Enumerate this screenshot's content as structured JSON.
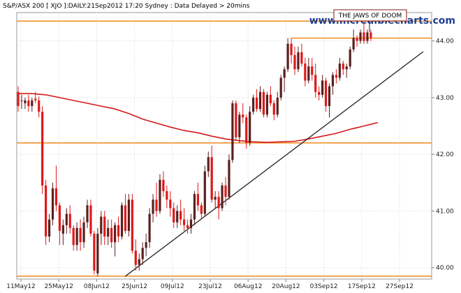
{
  "header_text": "S&P/ASX 200 [ XJO ]:DAILY:21Sep2012 17:20 Sydney : Data Delayed > 20mins",
  "watermark": "www.incrediblecharts.com",
  "annotation": "THE JAWS OF DOOM",
  "colors": {
    "up": "#5a1f1f",
    "down": "#e01818",
    "ma": "#d41a1a",
    "hline": "#f08a1c",
    "trend": "#202020",
    "grid": "#d6d6d6",
    "axis": "#808080",
    "watermark": "#1f3f8f",
    "annotation_border": "#8b1a1a"
  },
  "chart_data": {
    "type": "candlestick",
    "x_labels": [
      "11May12",
      "25May12",
      "08Jun12",
      "25Jun12",
      "09Jul12",
      "23Jul12",
      "06Aug12",
      "20Aug12",
      "03Sep12",
      "17Sep12",
      "27Sep12"
    ],
    "y_ticks": [
      "44.00",
      "43.00",
      "42.00",
      "41.00",
      "40.00"
    ],
    "ylim": [
      39.8,
      44.5
    ],
    "hlines": [
      44.35,
      44.05,
      42.2,
      39.85
    ],
    "ma_line": [
      43.07,
      43.07,
      43.05,
      43.0,
      42.95,
      42.9,
      42.85,
      42.8,
      42.72,
      42.62,
      42.55,
      42.48,
      42.42,
      42.38,
      42.32,
      42.27,
      42.24,
      42.22,
      42.21,
      42.22,
      42.23,
      42.27,
      42.32,
      42.37,
      42.44,
      42.5,
      42.56
    ],
    "ma_start_index": 0,
    "ma_end_index": 104,
    "trendline": {
      "from_index": 31,
      "from_value": 39.85,
      "to_index": 117,
      "to_value": 44.0
    },
    "candles": [
      [
        43.1,
        43.2,
        42.75,
        42.85
      ],
      [
        42.95,
        43.05,
        42.8,
        42.95
      ],
      [
        42.9,
        43.0,
        42.8,
        42.95
      ],
      [
        42.95,
        43.05,
        42.75,
        42.85
      ],
      [
        42.85,
        43.0,
        42.75,
        42.95
      ],
      [
        42.98,
        43.1,
        42.9,
        42.95
      ],
      [
        42.95,
        43.02,
        42.65,
        42.75
      ],
      [
        42.75,
        42.85,
        41.3,
        41.45
      ],
      [
        41.45,
        41.55,
        40.4,
        40.55
      ],
      [
        40.55,
        40.95,
        40.45,
        40.85
      ],
      [
        40.85,
        41.5,
        40.75,
        41.4
      ],
      [
        41.4,
        41.8,
        41.0,
        41.1
      ],
      [
        41.1,
        41.15,
        40.4,
        40.65
      ],
      [
        40.6,
        40.85,
        40.4,
        40.75
      ],
      [
        40.75,
        41.05,
        40.6,
        40.95
      ],
      [
        40.95,
        41.1,
        40.6,
        40.7
      ],
      [
        40.7,
        40.75,
        40.3,
        40.4
      ],
      [
        40.4,
        40.8,
        40.3,
        40.7
      ],
      [
        40.7,
        40.85,
        40.3,
        40.45
      ],
      [
        40.45,
        40.9,
        40.35,
        40.8
      ],
      [
        40.8,
        41.2,
        40.7,
        41.1
      ],
      [
        41.1,
        41.2,
        40.55,
        40.6
      ],
      [
        40.6,
        40.65,
        39.88,
        39.95
      ],
      [
        39.9,
        40.7,
        39.85,
        40.6
      ],
      [
        40.6,
        41.0,
        40.4,
        40.9
      ],
      [
        40.9,
        41.0,
        40.4,
        40.55
      ],
      [
        40.55,
        40.85,
        40.4,
        40.7
      ],
      [
        40.7,
        40.85,
        40.35,
        40.45
      ],
      [
        40.45,
        40.8,
        40.2,
        40.75
      ],
      [
        40.75,
        40.9,
        40.45,
        40.55
      ],
      [
        40.55,
        41.15,
        40.5,
        41.1
      ],
      [
        41.1,
        41.3,
        40.6,
        40.65
      ],
      [
        40.65,
        41.3,
        40.55,
        41.2
      ],
      [
        41.2,
        41.3,
        40.25,
        40.3
      ],
      [
        40.3,
        40.5,
        39.95,
        40.05
      ],
      [
        40.05,
        40.25,
        39.95,
        40.15
      ],
      [
        40.15,
        40.45,
        40.05,
        40.35
      ],
      [
        40.35,
        40.6,
        40.2,
        40.45
      ],
      [
        40.45,
        41.05,
        40.35,
        40.95
      ],
      [
        40.95,
        41.3,
        40.8,
        41.2
      ],
      [
        41.2,
        41.5,
        40.9,
        41.0
      ],
      [
        41.0,
        41.65,
        40.95,
        41.55
      ],
      [
        41.55,
        41.7,
        41.25,
        41.35
      ],
      [
        41.35,
        41.45,
        41.05,
        41.2
      ],
      [
        41.2,
        41.35,
        40.9,
        41.05
      ],
      [
        41.05,
        41.15,
        40.7,
        40.8
      ],
      [
        40.8,
        41.1,
        40.7,
        41.0
      ],
      [
        41.0,
        41.2,
        40.75,
        40.85
      ],
      [
        40.85,
        41.05,
        40.65,
        40.75
      ],
      [
        40.75,
        40.85,
        40.6,
        40.7
      ],
      [
        40.7,
        40.95,
        40.6,
        40.85
      ],
      [
        40.85,
        41.35,
        40.75,
        41.3
      ],
      [
        41.3,
        41.5,
        41.0,
        41.1
      ],
      [
        41.1,
        41.15,
        40.85,
        40.95
      ],
      [
        40.95,
        41.8,
        40.9,
        41.7
      ],
      [
        41.7,
        42.05,
        41.6,
        41.95
      ],
      [
        41.95,
        42.15,
        41.15,
        41.2
      ],
      [
        41.2,
        41.35,
        41.05,
        41.25
      ],
      [
        41.25,
        41.35,
        40.85,
        41.05
      ],
      [
        41.05,
        41.5,
        41.0,
        41.45
      ],
      [
        41.45,
        41.6,
        41.1,
        41.25
      ],
      [
        41.25,
        42.0,
        41.2,
        41.9
      ],
      [
        41.9,
        42.95,
        41.85,
        42.9
      ],
      [
        42.9,
        42.95,
        42.25,
        42.3
      ],
      [
        42.3,
        42.75,
        42.2,
        42.7
      ],
      [
        42.7,
        42.9,
        42.55,
        42.65
      ],
      [
        42.65,
        42.7,
        42.1,
        42.2
      ],
      [
        42.2,
        42.85,
        42.15,
        42.75
      ],
      [
        42.75,
        43.05,
        42.7,
        43.0
      ],
      [
        43.0,
        43.15,
        42.75,
        42.8
      ],
      [
        42.8,
        43.2,
        42.75,
        43.1
      ],
      [
        43.1,
        43.15,
        42.65,
        42.7
      ],
      [
        42.7,
        43.1,
        42.65,
        43.05
      ],
      [
        43.05,
        43.2,
        42.85,
        42.9
      ],
      [
        42.9,
        42.95,
        42.6,
        42.7
      ],
      [
        42.7,
        43.1,
        42.65,
        43.0
      ],
      [
        43.0,
        43.4,
        42.95,
        43.35
      ],
      [
        43.35,
        43.55,
        43.1,
        43.5
      ],
      [
        43.5,
        44.05,
        43.45,
        43.95
      ],
      [
        43.95,
        44.05,
        43.6,
        43.75
      ],
      [
        43.75,
        43.9,
        43.4,
        43.5
      ],
      [
        43.5,
        43.9,
        43.45,
        43.8
      ],
      [
        43.8,
        43.95,
        43.55,
        43.6
      ],
      [
        43.6,
        43.7,
        43.2,
        43.3
      ],
      [
        43.3,
        43.7,
        43.25,
        43.55
      ],
      [
        43.55,
        43.7,
        43.3,
        43.4
      ],
      [
        43.4,
        43.6,
        43.0,
        43.1
      ],
      [
        43.1,
        43.2,
        42.95,
        43.05
      ],
      [
        43.05,
        43.4,
        43.0,
        43.3
      ],
      [
        43.3,
        43.35,
        42.75,
        42.85
      ],
      [
        42.85,
        43.25,
        42.65,
        43.2
      ],
      [
        43.2,
        43.45,
        43.05,
        43.4
      ],
      [
        43.4,
        43.5,
        43.25,
        43.35
      ],
      [
        43.35,
        43.7,
        43.3,
        43.6
      ],
      [
        43.6,
        43.65,
        43.4,
        43.5
      ],
      [
        43.5,
        43.6,
        43.35,
        43.55
      ],
      [
        43.55,
        43.9,
        43.5,
        43.85
      ],
      [
        43.85,
        44.2,
        43.8,
        44.05
      ],
      [
        44.05,
        44.1,
        43.9,
        44.0
      ],
      [
        44.0,
        44.2,
        43.95,
        44.15
      ],
      [
        44.15,
        44.35,
        43.95,
        44.0
      ],
      [
        44.0,
        44.2,
        43.95,
        44.15
      ],
      [
        44.15,
        44.2,
        44.0,
        44.05
      ]
    ]
  }
}
